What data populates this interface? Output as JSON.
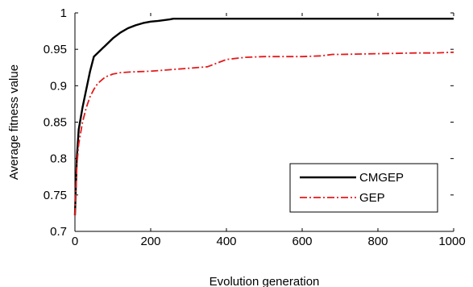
{
  "chart_data": {
    "type": "line",
    "xlabel": "Evolution  generation",
    "ylabel": "Average fitness value",
    "xlim": [
      0,
      1000
    ],
    "ylim": [
      0.7,
      1.0
    ],
    "xticks": [
      0,
      200,
      400,
      600,
      800,
      1000
    ],
    "yticks": [
      0.7,
      0.75,
      0.8,
      0.85,
      0.9,
      0.95,
      1.0
    ],
    "xtick_labels": [
      "0",
      "200",
      "400",
      "600",
      "800",
      "1000"
    ],
    "ytick_labels": [
      "0.7",
      "0.75",
      "0.8",
      "0.85",
      "0.9",
      "0.95",
      "1"
    ],
    "grid": false,
    "legend_position": "lower-right",
    "series": [
      {
        "name": "CMGEP",
        "color": "#000000",
        "style": "solid",
        "x": [
          0,
          5,
          10,
          20,
          30,
          40,
          50,
          60,
          80,
          100,
          120,
          140,
          160,
          180,
          200,
          220,
          250,
          260,
          300,
          400,
          500,
          600,
          700,
          800,
          900,
          1000
        ],
        "y": [
          0.722,
          0.8,
          0.84,
          0.87,
          0.895,
          0.92,
          0.94,
          0.945,
          0.955,
          0.965,
          0.973,
          0.979,
          0.983,
          0.986,
          0.988,
          0.989,
          0.991,
          0.992,
          0.992,
          0.992,
          0.992,
          0.992,
          0.992,
          0.992,
          0.992,
          0.992
        ]
      },
      {
        "name": "GEP",
        "color": "#e41a1c",
        "style": "dash-dot",
        "x": [
          0,
          5,
          10,
          20,
          30,
          40,
          50,
          60,
          80,
          100,
          120,
          150,
          200,
          250,
          300,
          350,
          380,
          400,
          450,
          500,
          550,
          600,
          650,
          680,
          700,
          800,
          900,
          950,
          1000
        ],
        "y": [
          0.722,
          0.79,
          0.82,
          0.85,
          0.87,
          0.885,
          0.895,
          0.903,
          0.912,
          0.916,
          0.918,
          0.919,
          0.92,
          0.922,
          0.924,
          0.926,
          0.932,
          0.936,
          0.939,
          0.94,
          0.94,
          0.94,
          0.941,
          0.943,
          0.943,
          0.944,
          0.945,
          0.945,
          0.946
        ]
      }
    ]
  }
}
